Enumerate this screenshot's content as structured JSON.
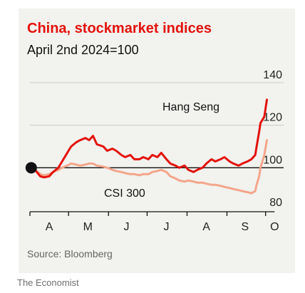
{
  "chart_data": {
    "type": "line",
    "title": "China, stockmarket indices",
    "subtitle": "April 2nd 2024=100",
    "source": "Source: Bloomberg",
    "ylim": [
      80,
      140
    ],
    "yticks": [
      80,
      100,
      120,
      140
    ],
    "xlim": [
      "2024-04-01",
      "2024-10-15"
    ],
    "x_month_labels": [
      {
        "date": "2024-04-16",
        "label": "A"
      },
      {
        "date": "2024-05-16",
        "label": "M"
      },
      {
        "date": "2024-06-15",
        "label": "J"
      },
      {
        "date": "2024-07-16",
        "label": "J"
      },
      {
        "date": "2024-08-16",
        "label": "A"
      },
      {
        "date": "2024-09-15",
        "label": "S"
      },
      {
        "date": "2024-10-08",
        "label": "O"
      }
    ],
    "x_month_ticks": [
      "2024-04-01",
      "2024-05-01",
      "2024-06-01",
      "2024-07-01",
      "2024-08-01",
      "2024-09-01",
      "2024-10-01"
    ],
    "grid": true,
    "series": [
      {
        "name": "Hang Seng",
        "color": "#e3120b",
        "points": [
          [
            "2024-04-02",
            100
          ],
          [
            "2024-04-05",
            99
          ],
          [
            "2024-04-09",
            96
          ],
          [
            "2024-04-12",
            95.5
          ],
          [
            "2024-04-16",
            96
          ],
          [
            "2024-04-19",
            98
          ],
          [
            "2024-04-23",
            100
          ],
          [
            "2024-04-26",
            103
          ],
          [
            "2024-04-30",
            107
          ],
          [
            "2024-05-03",
            110
          ],
          [
            "2024-05-07",
            112
          ],
          [
            "2024-05-10",
            113
          ],
          [
            "2024-05-14",
            114
          ],
          [
            "2024-05-17",
            113
          ],
          [
            "2024-05-20",
            115
          ],
          [
            "2024-05-23",
            111
          ],
          [
            "2024-05-28",
            110
          ],
          [
            "2024-05-31",
            108
          ],
          [
            "2024-06-04",
            109
          ],
          [
            "2024-06-07",
            108
          ],
          [
            "2024-06-11",
            106
          ],
          [
            "2024-06-14",
            105
          ],
          [
            "2024-06-18",
            106
          ],
          [
            "2024-06-21",
            104
          ],
          [
            "2024-06-25",
            104
          ],
          [
            "2024-06-28",
            105
          ],
          [
            "2024-07-02",
            104
          ],
          [
            "2024-07-05",
            106
          ],
          [
            "2024-07-09",
            105
          ],
          [
            "2024-07-12",
            107
          ],
          [
            "2024-07-16",
            104
          ],
          [
            "2024-07-19",
            102
          ],
          [
            "2024-07-23",
            101
          ],
          [
            "2024-07-26",
            100
          ],
          [
            "2024-07-30",
            101
          ],
          [
            "2024-08-02",
            99
          ],
          [
            "2024-08-06",
            98
          ],
          [
            "2024-08-09",
            99
          ],
          [
            "2024-08-13",
            100
          ],
          [
            "2024-08-16",
            102
          ],
          [
            "2024-08-20",
            104
          ],
          [
            "2024-08-23",
            103
          ],
          [
            "2024-08-27",
            104
          ],
          [
            "2024-08-30",
            105
          ],
          [
            "2024-09-03",
            103
          ],
          [
            "2024-09-06",
            102
          ],
          [
            "2024-09-10",
            101
          ],
          [
            "2024-09-13",
            102
          ],
          [
            "2024-09-17",
            103
          ],
          [
            "2024-09-20",
            104
          ],
          [
            "2024-09-23",
            106
          ],
          [
            "2024-09-24",
            110
          ],
          [
            "2024-09-26",
            117
          ],
          [
            "2024-09-27",
            121
          ],
          [
            "2024-09-30",
            124
          ],
          [
            "2024-10-02",
            132
          ]
        ]
      },
      {
        "name": "CSI 300",
        "color": "#f4a58a",
        "points": [
          [
            "2024-04-02",
            100
          ],
          [
            "2024-04-05",
            99
          ],
          [
            "2024-04-09",
            97
          ],
          [
            "2024-04-12",
            96.5
          ],
          [
            "2024-04-16",
            97
          ],
          [
            "2024-04-19",
            98
          ],
          [
            "2024-04-23",
            99
          ],
          [
            "2024-04-26",
            100
          ],
          [
            "2024-04-30",
            101
          ],
          [
            "2024-05-03",
            102
          ],
          [
            "2024-05-07",
            101.5
          ],
          [
            "2024-05-10",
            101
          ],
          [
            "2024-05-14",
            101.5
          ],
          [
            "2024-05-17",
            102
          ],
          [
            "2024-05-20",
            102
          ],
          [
            "2024-05-23",
            101
          ],
          [
            "2024-05-28",
            100.5
          ],
          [
            "2024-05-31",
            100
          ],
          [
            "2024-06-04",
            99
          ],
          [
            "2024-06-07",
            98.5
          ],
          [
            "2024-06-11",
            98
          ],
          [
            "2024-06-14",
            97.5
          ],
          [
            "2024-06-18",
            97
          ],
          [
            "2024-06-21",
            97
          ],
          [
            "2024-06-25",
            96.5
          ],
          [
            "2024-06-28",
            97
          ],
          [
            "2024-07-02",
            97
          ],
          [
            "2024-07-05",
            98
          ],
          [
            "2024-07-09",
            98.5
          ],
          [
            "2024-07-12",
            99
          ],
          [
            "2024-07-16",
            98
          ],
          [
            "2024-07-19",
            96
          ],
          [
            "2024-07-23",
            95
          ],
          [
            "2024-07-26",
            94
          ],
          [
            "2024-07-30",
            93.5
          ],
          [
            "2024-08-02",
            94
          ],
          [
            "2024-08-06",
            93.5
          ],
          [
            "2024-08-09",
            93
          ],
          [
            "2024-08-13",
            93
          ],
          [
            "2024-08-16",
            92.5
          ],
          [
            "2024-08-20",
            92
          ],
          [
            "2024-08-23",
            92
          ],
          [
            "2024-08-27",
            91.5
          ],
          [
            "2024-08-30",
            91
          ],
          [
            "2024-09-03",
            90.5
          ],
          [
            "2024-09-06",
            90
          ],
          [
            "2024-09-10",
            89.5
          ],
          [
            "2024-09-13",
            89
          ],
          [
            "2024-09-17",
            88.5
          ],
          [
            "2024-09-20",
            88
          ],
          [
            "2024-09-23",
            89
          ],
          [
            "2024-09-24",
            92
          ],
          [
            "2024-09-26",
            96
          ],
          [
            "2024-09-27",
            100
          ],
          [
            "2024-09-30",
            106
          ],
          [
            "2024-10-02",
            113
          ]
        ]
      }
    ]
  },
  "brand": "The Economist"
}
